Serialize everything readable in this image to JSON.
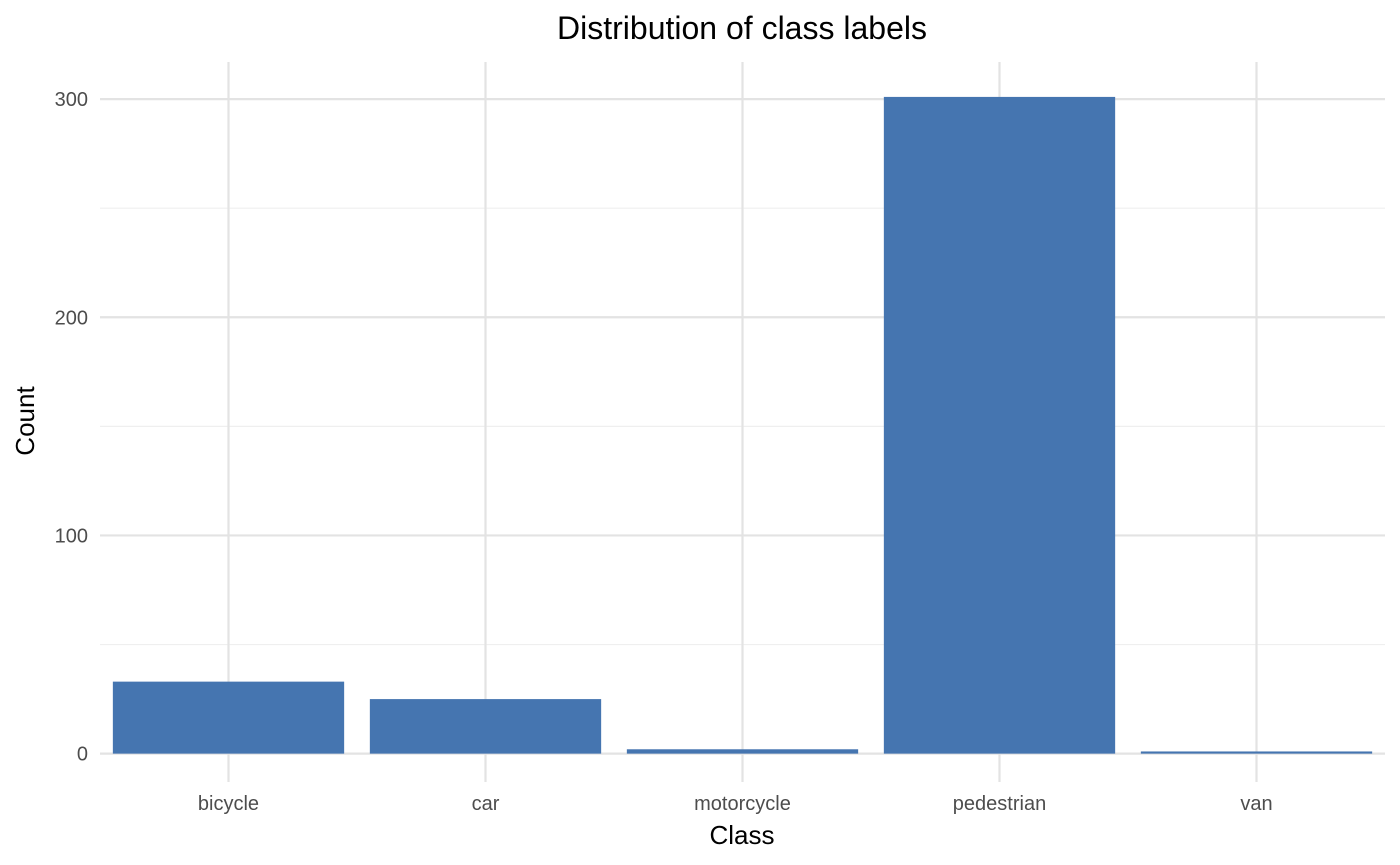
{
  "chart_data": {
    "type": "bar",
    "title": "Distribution of class labels",
    "xlabel": "Class",
    "ylabel": "Count",
    "categories": [
      "bicycle",
      "car",
      "motorcycle",
      "pedestrian",
      "van"
    ],
    "values": [
      33,
      25,
      2,
      301,
      1
    ],
    "ylim": [
      -13,
      317
    ],
    "yticks": [
      0,
      100,
      200,
      300
    ],
    "yticks_minor": [
      50,
      150,
      250
    ],
    "grid": true,
    "legend": "none",
    "bar_color": "#4575b0"
  }
}
